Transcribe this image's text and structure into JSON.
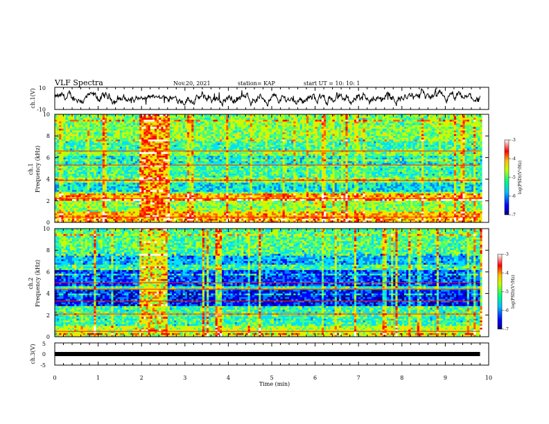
{
  "header": {
    "title": "VLF Spectra",
    "date": "Nov.20, 2021",
    "station": "station= KAP",
    "start": "start  UT =   10: 10: 1"
  },
  "colors": {
    "colormap": [
      "#00007f",
      "#0000ff",
      "#0080ff",
      "#00e0ff",
      "#40ff80",
      "#c0ff00",
      "#ffe000",
      "#ff6000",
      "#ff0000",
      "#ffffff"
    ],
    "trace": "#000000"
  },
  "chart_data": [
    {
      "type": "line",
      "ylabel": "ch.1(V)",
      "ylim": [
        -10,
        10
      ],
      "yticks": [
        "10",
        "-10"
      ],
      "xlim": [
        0,
        10
      ],
      "x_end": 9.8
    },
    {
      "type": "heatmap",
      "ylabel_line1": "ch.1",
      "ylabel_line2": "Frequency  (kHz)",
      "ylim": [
        0,
        10
      ],
      "yticks": [
        "0",
        "2",
        "4",
        "6",
        "8",
        "10"
      ],
      "xlim": [
        0,
        10
      ],
      "colorbar": {
        "label": "log(PSD)(V²/Hz)",
        "ticks": [
          "-3",
          "-4",
          "-5",
          "-6",
          "-7"
        ],
        "range": [
          -7,
          -3
        ]
      }
    },
    {
      "type": "heatmap",
      "ylabel_line1": "ch.2",
      "ylabel_line2": "Frequency  (kHz)",
      "ylim": [
        0,
        10
      ],
      "yticks": [
        "0",
        "2",
        "4",
        "6",
        "8",
        "10"
      ],
      "xlim": [
        0,
        10
      ],
      "colorbar": {
        "label": "log(PSD)(V²/Hz)",
        "ticks": [
          "-3",
          "-4",
          "-5",
          "-6",
          "-7"
        ],
        "range": [
          -7,
          -3
        ]
      }
    },
    {
      "type": "line",
      "ylabel": "ch.3(V)",
      "ylim": [
        -5,
        5
      ],
      "yticks": [
        "5",
        "0",
        "-5"
      ],
      "xlim": [
        0,
        10
      ],
      "x_end": 9.8
    }
  ],
  "xaxis": {
    "label": "Time  (min)",
    "ticks": [
      "0",
      "1",
      "2",
      "3",
      "4",
      "5",
      "6",
      "7",
      "8",
      "9",
      "10"
    ]
  }
}
